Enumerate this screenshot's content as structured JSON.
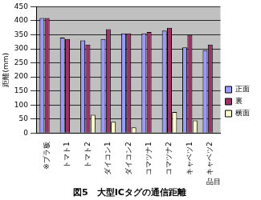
{
  "chart_data": {
    "type": "bar",
    "title": "図5　大型ICタグの通信距離",
    "x_label": "品目",
    "y_label": "距離(mm)",
    "categories": [
      "※プラ板",
      "トマト1",
      "トマト2",
      "ダイコン1",
      "ダイコン2",
      "コマツナ1",
      "コマツナ2",
      "キャベツ1",
      "キャベツ2"
    ],
    "series": [
      {
        "name": "正面",
        "color": "#9999ff",
        "values": [
          410,
          340,
          330,
          335,
          355,
          355,
          365,
          305,
          295
        ]
      },
      {
        "name": "裏",
        "color": "#993366",
        "values": [
          410,
          335,
          315,
          370,
          355,
          360,
          375,
          350,
          315
        ]
      },
      {
        "name": "横面",
        "color": "#ffffcc",
        "values": [
          null,
          null,
          65,
          40,
          20,
          null,
          75,
          45,
          null
        ]
      }
    ],
    "ylim": [
      0,
      450
    ],
    "yticks": [
      0,
      50,
      100,
      150,
      200,
      250,
      300,
      350,
      400,
      450
    ],
    "grid": true,
    "legend": "right"
  }
}
